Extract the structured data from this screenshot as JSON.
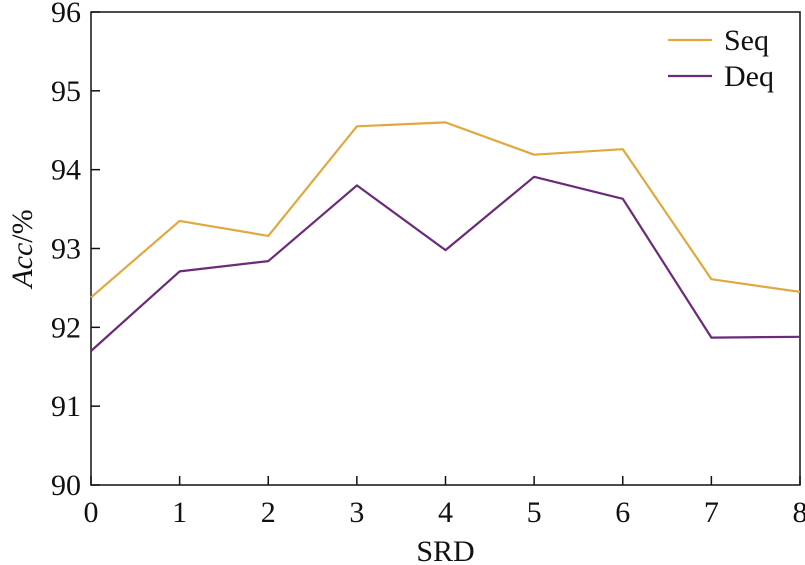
{
  "chart_data": {
    "type": "line",
    "title": "",
    "xlabel": "SRD",
    "ylabel": "Acc/%",
    "x": [
      0,
      1,
      2,
      3,
      4,
      5,
      6,
      7,
      8
    ],
    "xlim": [
      0,
      8
    ],
    "ylim": [
      90,
      96
    ],
    "x_ticks": [
      "0",
      "1",
      "2",
      "3",
      "4",
      "5",
      "6",
      "7",
      "8"
    ],
    "y_ticks": [
      "90",
      "91",
      "92",
      "93",
      "94",
      "95",
      "96"
    ],
    "grid": false,
    "legend_position": "top-right",
    "series": [
      {
        "name": "Seq",
        "color": "#E0A93F",
        "values": [
          92.38,
          93.35,
          93.16,
          94.55,
          94.6,
          94.19,
          94.26,
          92.61,
          92.45
        ]
      },
      {
        "name": "Deq",
        "color": "#6B2A7A",
        "values": [
          91.7,
          92.71,
          92.84,
          93.8,
          92.98,
          93.91,
          93.63,
          91.87,
          91.88
        ]
      }
    ]
  }
}
